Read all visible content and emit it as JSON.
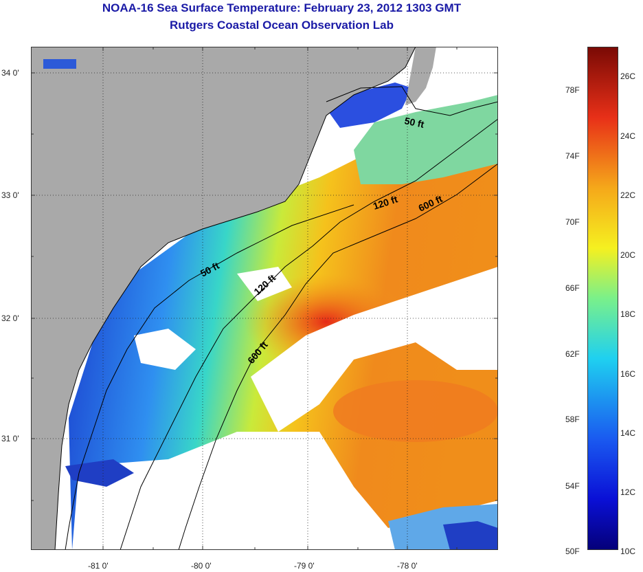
{
  "title": {
    "line1": "NOAA-16 Sea Surface Temperature:  February 23, 2012 1303 GMT",
    "line2": "Rutgers Coastal Ocean Observation Lab"
  },
  "map": {
    "lat_ticks": [
      "34 0'",
      "33 0'",
      "32 0'",
      "31 0'"
    ],
    "lon_ticks": [
      "-81 0'",
      "-80 0'",
      "-79 0'",
      "-78 0'"
    ],
    "contours": {
      "c50_a": "50 ft",
      "c50_b": "50 ft",
      "c120_a": "120 ft",
      "c120_b": "120 ft",
      "c600_a": "600 ft",
      "c600_b": "600 ft"
    },
    "colors": {
      "land": "#a9a9a9",
      "cloud": "#ffffff",
      "cold": "#1e3fd6",
      "cool": "#22c8e0",
      "mild": "#d8ef2a",
      "warm": "#f7a21b",
      "hot": "#e8301a"
    }
  },
  "colorbar": {
    "fahrenheit": [
      "78F",
      "74F",
      "70F",
      "66F",
      "62F",
      "58F",
      "54F",
      "50F"
    ],
    "celsius": [
      "26C",
      "24C",
      "22C",
      "20C",
      "18C",
      "16C",
      "14C",
      "12C",
      "10C"
    ]
  }
}
